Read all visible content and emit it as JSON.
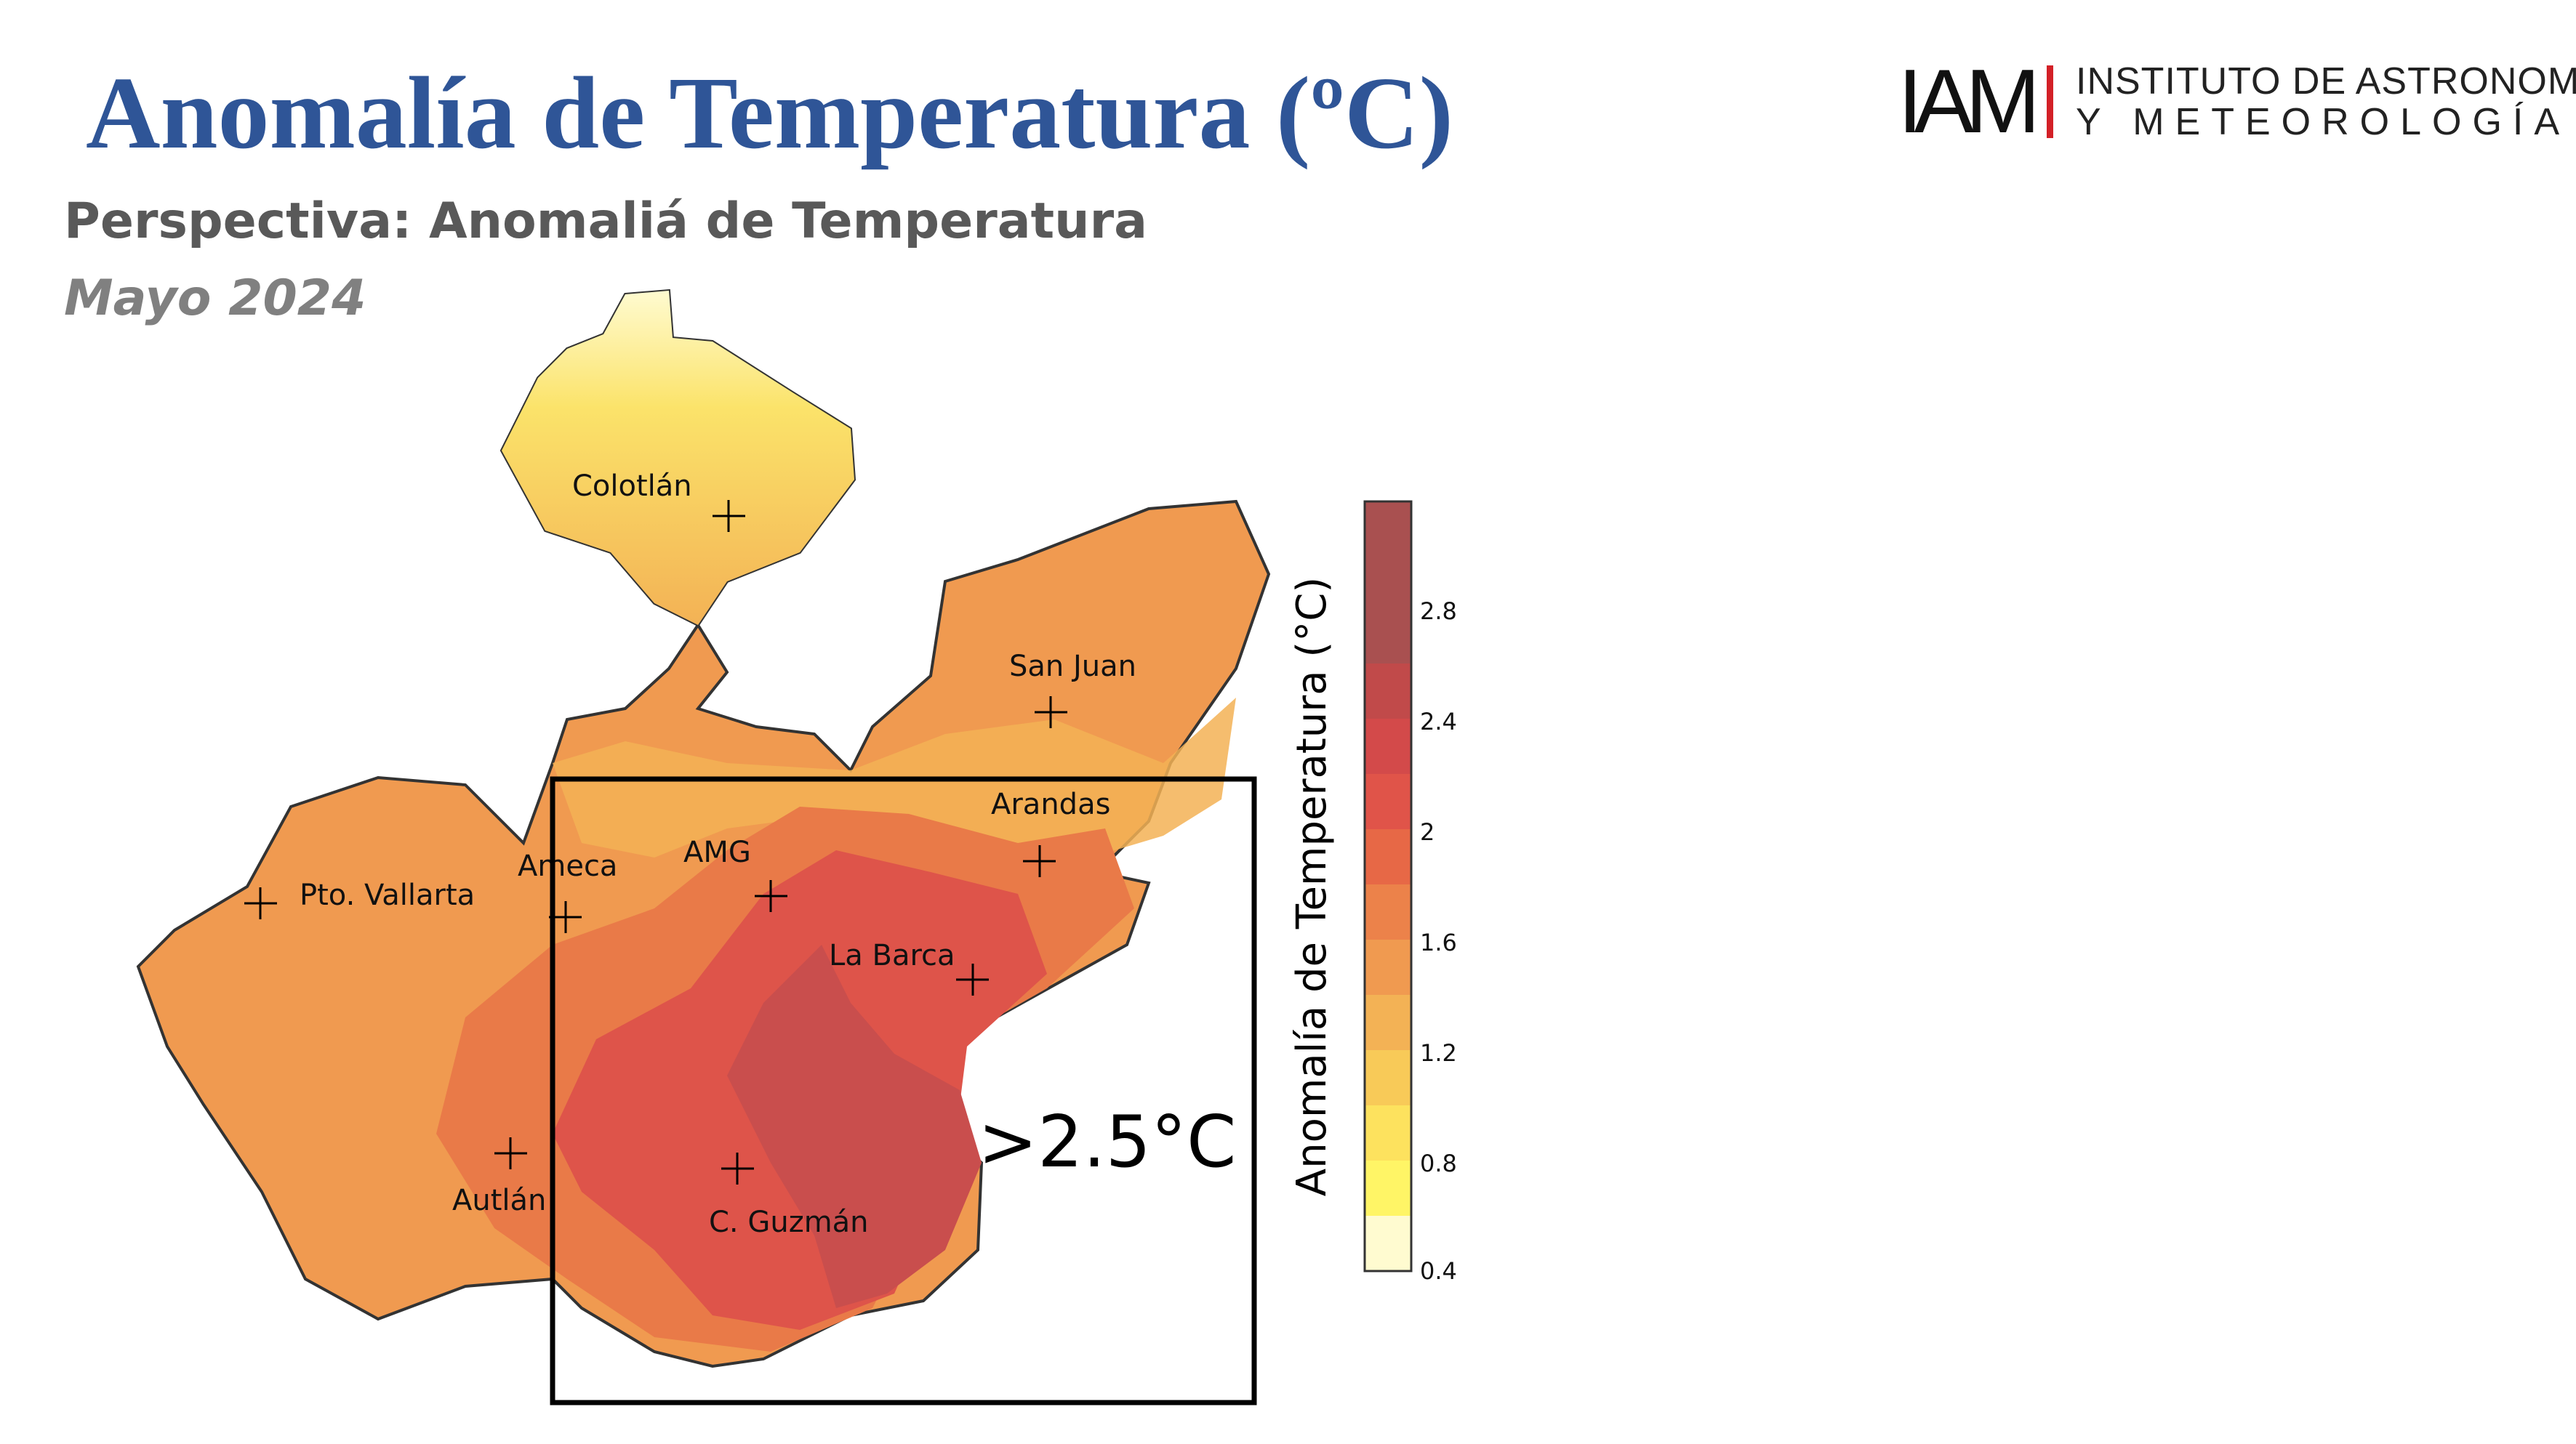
{
  "header": {
    "title": "Anomalía de Temperatura (ºC)",
    "subtitle": "Perspectiva: Anomaliá de Temperatura",
    "period": "Mayo 2024"
  },
  "logo": {
    "mark": "IAM",
    "line1": "INSTITUTO DE ASTRONOMÍA",
    "line2": "Y METEOROLOGÍA",
    "accent_color": "#d32027"
  },
  "map": {
    "cities": [
      "Colotlán",
      "San Juan",
      "Arandas",
      "Ameca",
      "AMG",
      "Pto. Vallarta",
      "La Barca",
      "Autlán",
      "C. Guzmán"
    ],
    "annotation": ">2.5°C"
  },
  "legend": {
    "title": "Anomalía de Temperatura (°C)",
    "ticks": [
      "2.8",
      "2.4",
      "2",
      "1.6",
      "1.2",
      "0.8",
      "0.4"
    ],
    "colors": [
      "#fffbd0",
      "#fff566",
      "#fde25e",
      "#f8ca58",
      "#f3b255",
      "#f09a50",
      "#ec824a",
      "#e76846",
      "#e05449",
      "#d34a4a",
      "#c14a4a",
      "#a95050"
    ]
  }
}
